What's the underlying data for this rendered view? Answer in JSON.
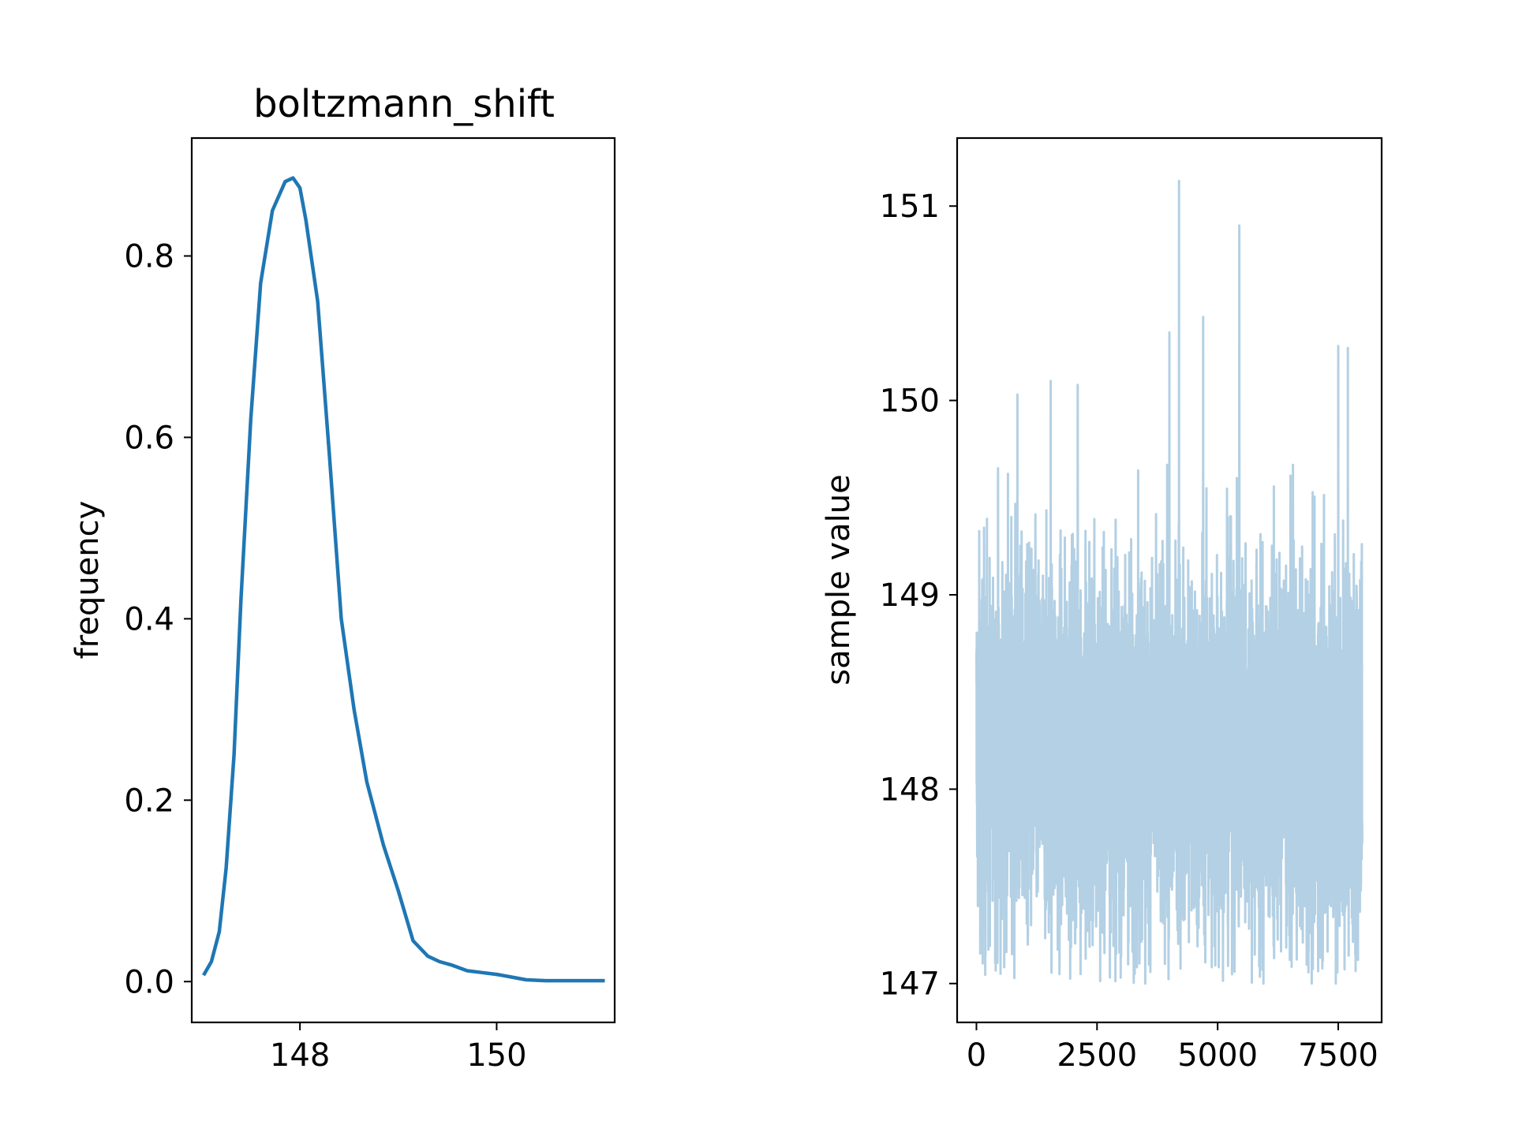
{
  "figure": {
    "background": "#ffffff"
  },
  "chart_data": [
    {
      "type": "line",
      "title": "boltzmann_shift",
      "xlabel": "",
      "ylabel": "frequency",
      "xlim": [
        146.9,
        151.2
      ],
      "ylim": [
        -0.045,
        0.93
      ],
      "xticks": [
        148,
        150
      ],
      "xtick_labels": [
        "148",
        "150"
      ],
      "yticks": [
        0.0,
        0.2,
        0.4,
        0.6,
        0.8
      ],
      "ytick_labels": [
        "0.0",
        "0.2",
        "0.4",
        "0.6",
        "0.8"
      ],
      "grid": false,
      "series": [
        {
          "color": "#1f77b4",
          "x": [
            147.02,
            147.1,
            147.18,
            147.25,
            147.33,
            147.4,
            147.5,
            147.6,
            147.72,
            147.85,
            147.93,
            148.0,
            148.06,
            148.18,
            148.3,
            148.42,
            148.55,
            148.68,
            148.85,
            149.0,
            149.15,
            149.3,
            149.42,
            149.55,
            149.7,
            149.85,
            150.0,
            150.15,
            150.3,
            150.5,
            150.7,
            151.0,
            151.1
          ],
          "y": [
            0.007,
            0.022,
            0.055,
            0.125,
            0.25,
            0.42,
            0.62,
            0.77,
            0.85,
            0.882,
            0.886,
            0.875,
            0.84,
            0.75,
            0.58,
            0.4,
            0.3,
            0.22,
            0.15,
            0.1,
            0.045,
            0.028,
            0.022,
            0.018,
            0.012,
            0.01,
            0.008,
            0.005,
            0.002,
            0.001,
            0.001,
            0.001,
            0.001
          ]
        }
      ]
    },
    {
      "type": "line",
      "title": "",
      "xlabel": "",
      "ylabel": "sample value",
      "xlim": [
        -400,
        8400
      ],
      "ylim": [
        146.8,
        151.35
      ],
      "xticks": [
        0,
        2500,
        5000,
        7500
      ],
      "xtick_labels": [
        "0",
        "2500",
        "5000",
        "7500"
      ],
      "yticks": [
        147,
        148,
        149,
        150,
        151
      ],
      "ytick_labels": [
        "147",
        "148",
        "149",
        "150",
        "151"
      ],
      "grid": false,
      "series": [
        {
          "color": "#b3d0e4",
          "n_samples": 8000,
          "min": 147.0,
          "max": 151.13,
          "peaks": [
            {
              "x": 4200,
              "y": 151.13
            },
            {
              "x": 5450,
              "y": 150.9
            },
            {
              "x": 4700,
              "y": 150.43
            },
            {
              "x": 4000,
              "y": 150.35
            },
            {
              "x": 7500,
              "y": 150.28
            },
            {
              "x": 7700,
              "y": 150.27
            },
            {
              "x": 1540,
              "y": 150.1
            },
            {
              "x": 2100,
              "y": 150.08
            },
            {
              "x": 850,
              "y": 150.03
            }
          ],
          "troughs": [
            {
              "x": 3500,
              "y": 147.0
            },
            {
              "x": 5950,
              "y": 147.0
            },
            {
              "x": 6950,
              "y": 147.0
            },
            {
              "x": 7450,
              "y": 147.0
            },
            {
              "x": 500,
              "y": 147.05
            }
          ]
        }
      ]
    }
  ]
}
